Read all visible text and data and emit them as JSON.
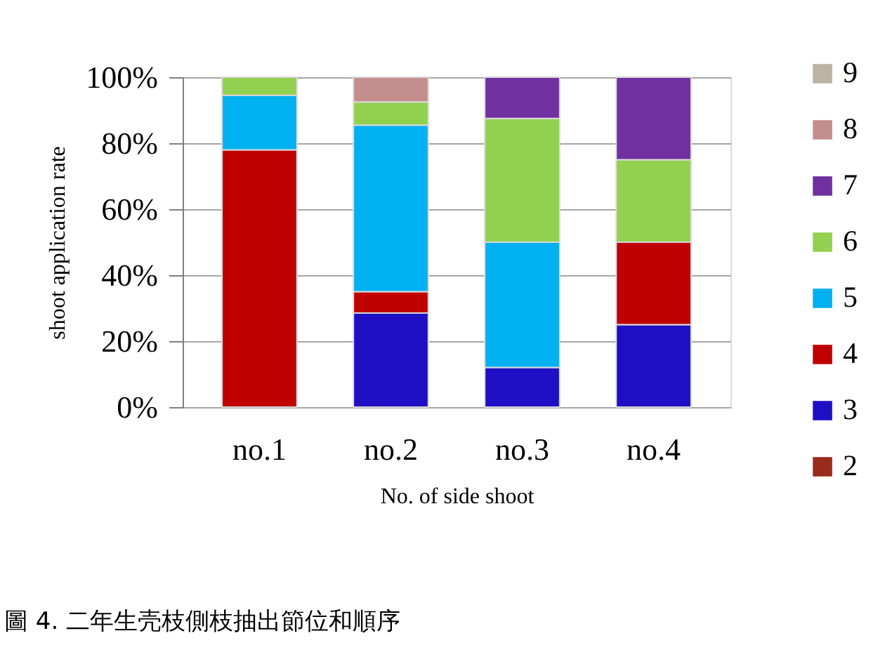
{
  "chart_data": {
    "type": "bar",
    "stacked": true,
    "categories": [
      "no.1",
      "no.2",
      "no.3",
      "no.4"
    ],
    "xlabel": "No. of side shoot",
    "ylabel": "shoot application rate",
    "series": [
      {
        "name": "2",
        "color": "#9a2a1c",
        "values": [
          null,
          null,
          null,
          null
        ]
      },
      {
        "name": "3",
        "color": "#1f0fc4",
        "values": [
          null,
          28.5,
          12,
          25
        ]
      },
      {
        "name": "4",
        "color": "#c00000",
        "values": [
          78,
          6.5,
          null,
          25
        ]
      },
      {
        "name": "5",
        "color": "#00b0f0",
        "values": [
          16.5,
          50.5,
          38,
          null
        ]
      },
      {
        "name": "6",
        "color": "#92d050",
        "values": [
          5.5,
          7,
          37.5,
          25
        ]
      },
      {
        "name": "7",
        "color": "#7030a0",
        "values": [
          null,
          null,
          12.5,
          25
        ]
      },
      {
        "name": "8",
        "color": "#c48e8c",
        "values": [
          null,
          7.5,
          null,
          null
        ]
      },
      {
        "name": "9",
        "color": "#bcb3a3",
        "values": [
          null,
          null,
          null,
          null
        ]
      }
    ],
    "ylim": [
      0,
      100
    ],
    "yticks": [
      {
        "value": 0,
        "label": "0%"
      },
      {
        "value": 20,
        "label": "20%"
      },
      {
        "value": 40,
        "label": "40%"
      },
      {
        "value": 60,
        "label": "60%"
      },
      {
        "value": 80,
        "label": "80%"
      },
      {
        "value": 100,
        "label": "100%"
      }
    ],
    "grid": "y",
    "legend": "right",
    "annotations": [
      "圖 4. 二年生壳枝側枝抽出節位和順序"
    ]
  }
}
